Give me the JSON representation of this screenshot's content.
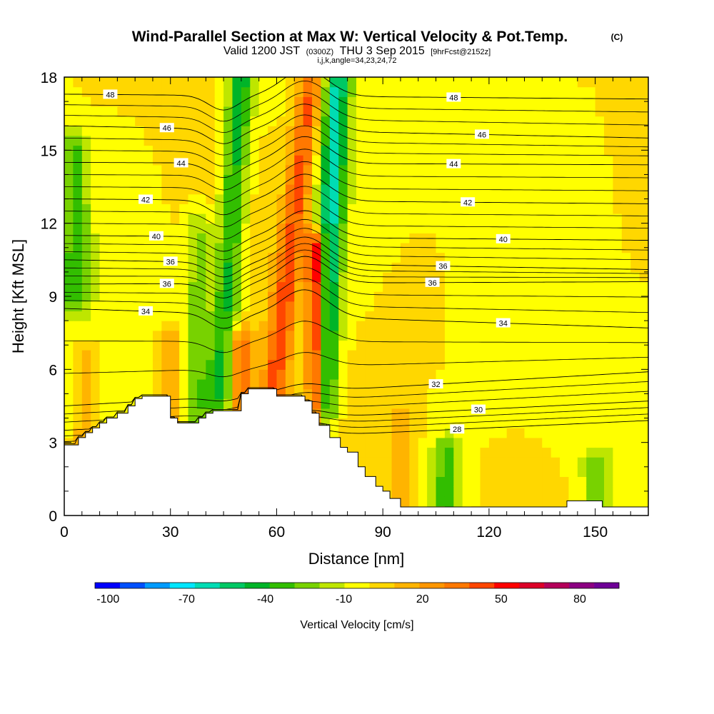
{
  "chart_data": {
    "type": "heatmap",
    "title": "Wind-Parallel Section at Max W: Vertical Velocity & Pot.Temp.",
    "title_mark": "(C)",
    "subtitle": {
      "valid": "Valid 1200 JST",
      "utc": "(0300Z)",
      "date": "THU 3 Sep 2015",
      "forecast": "[9hrFcst@2152z]"
    },
    "params": "i,j,k,angle=34,23,24,72",
    "xlabel": "Distance [nm]",
    "ylabel": "Height [Kft MSL]",
    "xlim": [
      0,
      165
    ],
    "ylim": [
      0,
      18
    ],
    "x_ticks": [
      0,
      30,
      60,
      90,
      120,
      150
    ],
    "y_ticks": [
      0,
      3,
      6,
      9,
      12,
      15,
      18
    ],
    "colorbar": {
      "title": "Vertical Velocity [cm/s]",
      "range": [
        -105,
        95
      ],
      "step": 10,
      "tick_values": [
        -100,
        -70,
        -40,
        -10,
        20,
        50,
        80
      ],
      "tick_labels": [
        "-100",
        "-70",
        "-40",
        "-10",
        "20",
        "50",
        "80"
      ],
      "colors": [
        "#0000ff",
        "#0050ff",
        "#009bff",
        "#00e6ff",
        "#00dcb4",
        "#00c864",
        "#00b428",
        "#32be00",
        "#78d200",
        "#bee600",
        "#ffff00",
        "#ffd700",
        "#ffb400",
        "#ff9600",
        "#ff7800",
        "#ff4600",
        "#ff0000",
        "#dc0028",
        "#b4005a",
        "#8c0082",
        "#6e0096"
      ]
    },
    "terrain_kft": {
      "x": [
        0,
        4,
        6,
        8,
        10,
        12,
        15,
        18,
        20,
        22,
        25,
        28,
        30,
        32,
        35,
        38,
        40,
        42,
        45,
        48,
        50,
        52,
        55,
        58,
        60,
        62,
        65,
        68,
        70,
        72,
        75,
        78,
        80,
        83,
        85,
        88,
        90,
        92,
        95,
        100,
        140,
        142,
        150,
        152,
        165
      ],
      "h": [
        2.9,
        3.2,
        3.4,
        3.6,
        3.8,
        4.0,
        4.2,
        4.5,
        4.8,
        4.9,
        4.9,
        4.9,
        4.0,
        3.8,
        3.8,
        4.0,
        4.2,
        4.3,
        4.3,
        4.3,
        5.0,
        5.2,
        5.2,
        5.2,
        4.9,
        4.9,
        4.9,
        4.7,
        4.2,
        3.7,
        3.2,
        2.8,
        2.6,
        2.0,
        1.6,
        1.2,
        1.0,
        0.7,
        0.35,
        0.35,
        0.35,
        0.6,
        0.6,
        0.35,
        0.35
      ]
    },
    "w_features": [
      {
        "type": "updraft",
        "x": 71,
        "x_top": 71,
        "y_bottom": 4.5,
        "y_top": 11,
        "peak": 80
      },
      {
        "type": "updraft",
        "x": 59,
        "x_top": 70,
        "y_bottom": 5,
        "y_top": 18,
        "peak": 45
      },
      {
        "type": "updraft",
        "x": 50,
        "x_top": 50,
        "y_bottom": 4.5,
        "y_top": 7,
        "peak": 40
      },
      {
        "type": "updraft",
        "x": 6,
        "x_top": 6,
        "y_bottom": 3,
        "y_top": 6.5,
        "peak": 20
      },
      {
        "type": "updraft",
        "x": 30,
        "x_top": 30,
        "y_bottom": 4,
        "y_top": 7,
        "peak": 25
      },
      {
        "type": "updraft",
        "x": 95,
        "x_top": 95,
        "y_bottom": 0,
        "y_top": 4,
        "peak": 15
      },
      {
        "type": "downdraft",
        "x": 44,
        "x_top": 50,
        "y_bottom": 5,
        "y_top": 18,
        "peak": -45
      },
      {
        "type": "downdraft",
        "x": 73,
        "x_top": 77,
        "y_bottom": 4.5,
        "y_top": 18,
        "peak": -60
      },
      {
        "type": "downdraft",
        "x": 37,
        "x_top": 38,
        "y_bottom": 4,
        "y_top": 12,
        "peak": -25
      },
      {
        "type": "downdraft",
        "x": 108,
        "x_top": 108,
        "y_bottom": 0.5,
        "y_top": 2.5,
        "peak": -35
      },
      {
        "type": "downdraft",
        "x": 3,
        "x_top": 3,
        "y_bottom": 9,
        "y_top": 15,
        "peak": -30
      },
      {
        "type": "downdraft",
        "x": 150,
        "x_top": 150,
        "y_bottom": 0.5,
        "y_top": 2,
        "peak": -20
      }
    ],
    "isentropes": [
      {
        "label": "28",
        "y_left": 2.8,
        "y_right": 3.9,
        "label_x": 111
      },
      {
        "label": "30",
        "y_left": 3.5,
        "y_right": 4.7,
        "label_x": 117
      },
      {
        "label": "32",
        "y_left": 4.5,
        "y_right": 5.9,
        "label_x": 105
      },
      {
        "label": "34",
        "y_left": 8.5,
        "y_right": 7.7,
        "label_x": 124,
        "label_x2": 23
      },
      {
        "label": "36",
        "y_left": 9.5,
        "y_right": 9.6,
        "label_x": 104,
        "label_x2": 29
      },
      {
        "label": "36",
        "y_left": 10.5,
        "y_right": 10.1,
        "label_x": 107,
        "label_x2": 30
      },
      {
        "label": "40",
        "y_left": 11.5,
        "y_right": 11.3,
        "label_x": 124,
        "label_x2": 26
      },
      {
        "label": "42",
        "y_left": 13.0,
        "y_right": 12.8,
        "label_x": 114,
        "label_x2": 23
      },
      {
        "label": "44",
        "y_left": 14.5,
        "y_right": 14.4,
        "label_x": 110,
        "label_x2": 33
      },
      {
        "label": "46",
        "y_left": 16.0,
        "y_right": 15.5,
        "label_x": 118,
        "label_x2": 29
      },
      {
        "label": "48",
        "y_left": 17.3,
        "y_right": 17.1,
        "label_x": 110,
        "label_x2": 13
      }
    ]
  }
}
